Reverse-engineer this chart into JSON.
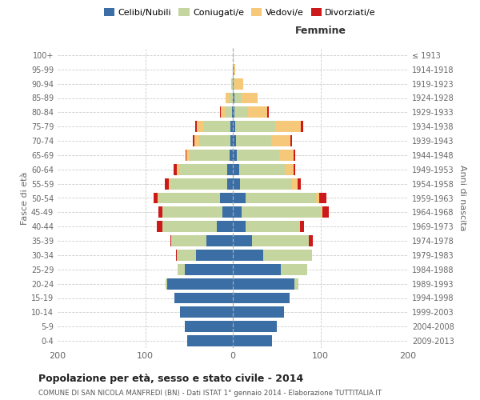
{
  "age_groups": [
    "0-4",
    "5-9",
    "10-14",
    "15-19",
    "20-24",
    "25-29",
    "30-34",
    "35-39",
    "40-44",
    "45-49",
    "50-54",
    "55-59",
    "60-64",
    "65-69",
    "70-74",
    "75-79",
    "80-84",
    "85-89",
    "90-94",
    "95-99",
    "100+"
  ],
  "birth_years": [
    "2009-2013",
    "2004-2008",
    "1999-2003",
    "1994-1998",
    "1989-1993",
    "1984-1988",
    "1979-1983",
    "1974-1978",
    "1969-1973",
    "1964-1968",
    "1959-1963",
    "1954-1958",
    "1949-1953",
    "1944-1948",
    "1939-1943",
    "1934-1938",
    "1929-1933",
    "1924-1928",
    "1919-1923",
    "1914-1918",
    "≤ 1913"
  ],
  "colors": {
    "celibi": "#3a6ea5",
    "coniugati": "#c5d5a0",
    "vedovi": "#f5c87a",
    "divorziati": "#cc1a1a"
  },
  "males": {
    "celibi": [
      52,
      55,
      60,
      67,
      75,
      55,
      42,
      30,
      18,
      12,
      15,
      6,
      6,
      4,
      3,
      3,
      1,
      0,
      0,
      0,
      0
    ],
    "coniugati": [
      0,
      0,
      0,
      0,
      2,
      8,
      22,
      40,
      62,
      68,
      70,
      65,
      55,
      45,
      35,
      30,
      8,
      4,
      1,
      0,
      0
    ],
    "vedovi": [
      0,
      0,
      0,
      0,
      0,
      0,
      0,
      0,
      0,
      0,
      1,
      2,
      3,
      4,
      6,
      8,
      5,
      4,
      1,
      0,
      0
    ],
    "divorziati": [
      0,
      0,
      0,
      0,
      0,
      0,
      1,
      1,
      7,
      5,
      4,
      5,
      4,
      1,
      2,
      2,
      1,
      0,
      0,
      0,
      0
    ]
  },
  "females": {
    "nubili": [
      45,
      50,
      58,
      65,
      70,
      55,
      35,
      22,
      15,
      10,
      15,
      8,
      7,
      5,
      4,
      3,
      2,
      2,
      1,
      1,
      0
    ],
    "coniugate": [
      0,
      0,
      0,
      0,
      5,
      30,
      55,
      65,
      62,
      90,
      80,
      60,
      52,
      48,
      40,
      45,
      15,
      8,
      1,
      0,
      0
    ],
    "vedove": [
      0,
      0,
      0,
      0,
      0,
      0,
      0,
      0,
      0,
      2,
      4,
      6,
      10,
      16,
      22,
      30,
      22,
      18,
      10,
      2,
      0
    ],
    "divorziate": [
      0,
      0,
      0,
      0,
      0,
      0,
      0,
      4,
      4,
      8,
      8,
      4,
      2,
      2,
      2,
      2,
      2,
      0,
      0,
      0,
      0
    ]
  },
  "title": "Popolazione per età, sesso e stato civile - 2014",
  "subtitle": "COMUNE DI SAN NICOLA MANFREDI (BN) - Dati ISTAT 1° gennaio 2014 - Elaborazione TUTTITALIA.IT",
  "xlabel_right": "Femmine",
  "ylabel_left": "Fasce di età",
  "ylabel_right": "Anni di nascita",
  "legend_labels": [
    "Celibi/Nubili",
    "Coniugati/e",
    "Vedovi/e",
    "Divorziati/e"
  ],
  "xlim": 200,
  "background_color": "#ffffff",
  "grid_color": "#cccccc"
}
